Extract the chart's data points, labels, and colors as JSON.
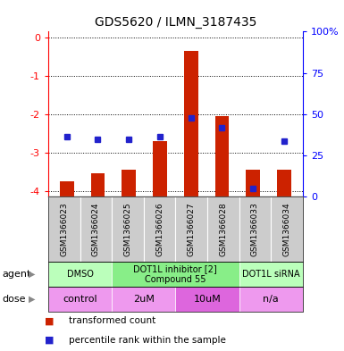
{
  "title": "GDS5620 / ILMN_3187435",
  "samples": [
    "GSM1366023",
    "GSM1366024",
    "GSM1366025",
    "GSM1366026",
    "GSM1366027",
    "GSM1366028",
    "GSM1366033",
    "GSM1366034"
  ],
  "bar_values": [
    -3.75,
    -3.55,
    -3.45,
    -2.7,
    -0.35,
    -2.05,
    -3.45,
    -3.45
  ],
  "percentile_values": [
    -2.6,
    -2.65,
    -2.65,
    -2.6,
    -2.1,
    -2.35,
    -3.95,
    -2.7
  ],
  "ylim_left": [
    -4.15,
    0.15
  ],
  "ylim_right": [
    -4.15,
    0.15
  ],
  "yticks_left": [
    0,
    -1,
    -2,
    -3,
    -4
  ],
  "ytick_labels_left": [
    "0",
    "-1",
    "-2",
    "-3",
    "-4"
  ],
  "ytick_labels_right": [
    "0",
    "25",
    "50",
    "75",
    "100%"
  ],
  "bar_color": "#cc2200",
  "dot_color": "#2222cc",
  "agent_groups": [
    {
      "label": "DMSO",
      "start": 0,
      "end": 2,
      "color": "#bbffbb"
    },
    {
      "label": "DOT1L inhibitor [2]\nCompound 55",
      "start": 2,
      "end": 6,
      "color": "#88ee88"
    },
    {
      "label": "DOT1L siRNA",
      "start": 6,
      "end": 8,
      "color": "#bbffbb"
    }
  ],
  "dose_groups": [
    {
      "label": "control",
      "start": 0,
      "end": 2,
      "color": "#ee99ee"
    },
    {
      "label": "2uM",
      "start": 2,
      "end": 4,
      "color": "#ee99ee"
    },
    {
      "label": "10uM",
      "start": 4,
      "end": 6,
      "color": "#dd66dd"
    },
    {
      "label": "n/a",
      "start": 6,
      "end": 8,
      "color": "#ee99ee"
    }
  ],
  "legend_items": [
    {
      "color": "#cc2200",
      "label": "transformed count"
    },
    {
      "color": "#2222cc",
      "label": "percentile rank within the sample"
    }
  ],
  "agent_label": "agent",
  "dose_label": "dose",
  "sample_bg_color": "#cccccc",
  "bar_width": 0.45
}
